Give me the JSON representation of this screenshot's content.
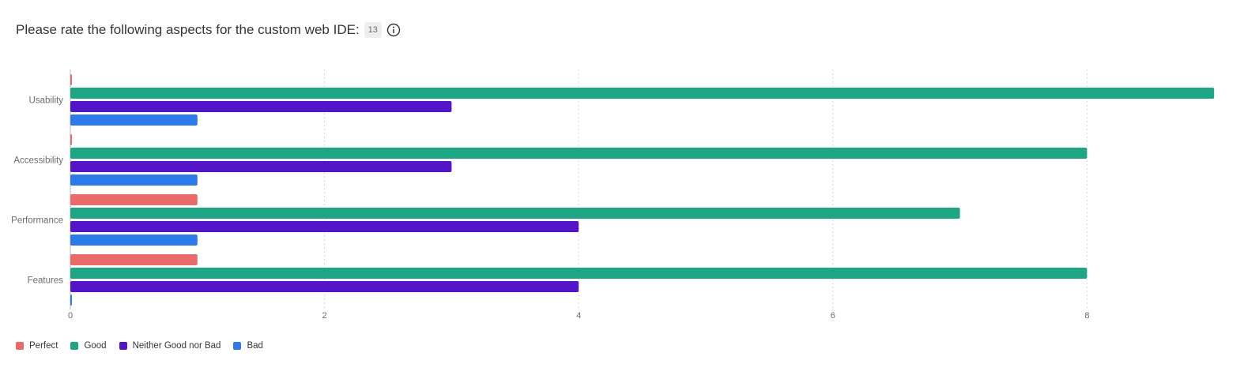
{
  "header": {
    "title": "Please rate the following aspects for the custom web IDE:",
    "response_count": "13",
    "info_icon": "info-circle-icon"
  },
  "chart_data": {
    "type": "bar",
    "orientation": "horizontal",
    "categories": [
      "Usability",
      "Accessibility",
      "Performance",
      "Features"
    ],
    "series": [
      {
        "name": "Perfect",
        "color": "#e96a6a",
        "values": [
          0,
          0,
          1,
          1
        ]
      },
      {
        "name": "Good",
        "color": "#1da683",
        "values": [
          9,
          8,
          7,
          8
        ]
      },
      {
        "name": "Neither Good nor Bad",
        "color": "#5215c8",
        "values": [
          3,
          3,
          4,
          4
        ]
      },
      {
        "name": "Bad",
        "color": "#2d7aeb",
        "values": [
          1,
          1,
          1,
          0
        ]
      }
    ],
    "x_ticks": [
      "0",
      "2",
      "4",
      "6",
      "8"
    ],
    "xlim": [
      0,
      9
    ],
    "grid": "vertical dashed",
    "legend_position": "bottom-left"
  }
}
